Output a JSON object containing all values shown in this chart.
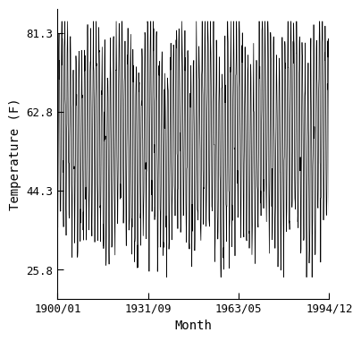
{
  "title": "",
  "xlabel": "Month",
  "ylabel": "Temperature (F)",
  "yticks": [
    25.8,
    44.3,
    62.8,
    81.3
  ],
  "ylim": [
    19.0,
    87.0
  ],
  "xtick_labels": [
    "1900/01",
    "1931/09",
    "1963/05",
    "1994/12"
  ],
  "xtick_positions_months": [
    0,
    380,
    760,
    1139
  ],
  "line_color": "#000000",
  "linewidth": 0.5,
  "background_color": "#ffffff",
  "mean_temp": 57.0,
  "amplitude": 22.5,
  "total_months": 1140,
  "font_family": "monospace",
  "font_size": 9,
  "label_fontsize": 10
}
